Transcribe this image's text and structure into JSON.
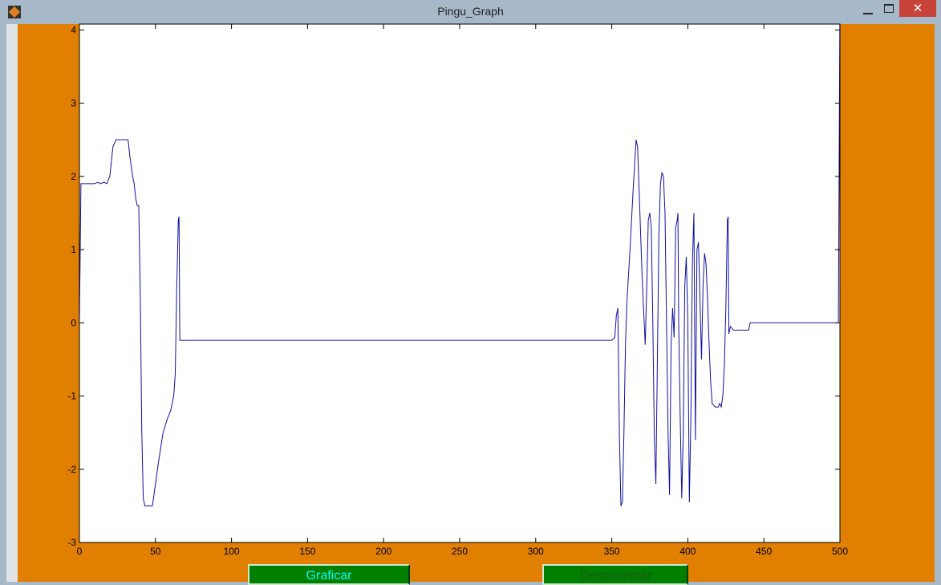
{
  "window": {
    "title": "Pingu_Graph"
  },
  "buttons": [
    "Graficar",
    "Desconectar"
  ],
  "chart_data": {
    "type": "line",
    "x": [
      0,
      1,
      10,
      12,
      14,
      16,
      18,
      20,
      22,
      24,
      30,
      32,
      33,
      35,
      36,
      37,
      38,
      39,
      40,
      41,
      42,
      43,
      48,
      50,
      52,
      55,
      58,
      60,
      62,
      63,
      64,
      65,
      65.5,
      66,
      350,
      352,
      353,
      354,
      355,
      356,
      357,
      358,
      359,
      360,
      362,
      364,
      366,
      367,
      368,
      370,
      372,
      373,
      374,
      375,
      376,
      377,
      378,
      379,
      380,
      381,
      382,
      383,
      384,
      385,
      386,
      387,
      388,
      389,
      390,
      391,
      392,
      393,
      393.5,
      394,
      395,
      396,
      397,
      398,
      399,
      400,
      401,
      402,
      403,
      404,
      405,
      406,
      407,
      408,
      409,
      410,
      411,
      412,
      413,
      414,
      415,
      416,
      418,
      420,
      421,
      422,
      423,
      424,
      425,
      426,
      426.5,
      427,
      428,
      430,
      435,
      440,
      441,
      498,
      499,
      500
    ],
    "series": [
      {
        "name": "signal",
        "color": "#1010a0",
        "values": [
          0,
          1.9,
          1.9,
          1.92,
          1.9,
          1.92,
          1.9,
          2.0,
          2.4,
          2.5,
          2.5,
          2.5,
          2.3,
          2.0,
          1.9,
          1.7,
          1.6,
          1.6,
          0.4,
          -1.5,
          -2.4,
          -2.5,
          -2.5,
          -2.2,
          -1.9,
          -1.5,
          -1.3,
          -1.2,
          -1.0,
          -0.7,
          0.5,
          1.4,
          1.45,
          -0.24,
          -0.24,
          -0.2,
          0.1,
          0.2,
          -1.5,
          -2.5,
          -2.45,
          -1.5,
          -0.3,
          0.3,
          1.0,
          1.8,
          2.5,
          2.4,
          1.8,
          0.6,
          -0.3,
          0.5,
          1.4,
          1.5,
          1.3,
          0,
          -1.6,
          -2.2,
          -0.5,
          1.2,
          1.9,
          2.05,
          2.0,
          1.5,
          0,
          -1.5,
          -2.35,
          -0.3,
          0.2,
          -0.2,
          1.3,
          1.4,
          1.5,
          0,
          -1.3,
          -2.4,
          -1.5,
          0.5,
          0.9,
          0,
          -2.45,
          -1.3,
          0.8,
          1.5,
          -1.6,
          1.0,
          1.1,
          0.3,
          -0.5,
          0.5,
          0.95,
          0.8,
          0.3,
          -0.3,
          -0.8,
          -1.1,
          -1.15,
          -1.15,
          -1.1,
          -1.15,
          -1.0,
          -0.6,
          0.2,
          1.4,
          1.45,
          -0.15,
          -0.05,
          -0.1,
          -0.1,
          -0.1,
          0,
          0,
          0,
          4.5
        ]
      }
    ],
    "xlim": [
      0,
      500
    ],
    "xticks": [
      0,
      50,
      100,
      150,
      200,
      250,
      300,
      350,
      400,
      450,
      500
    ],
    "ylim": [
      -3,
      4.08
    ],
    "yticks": [
      -3,
      -2,
      -1,
      0,
      1,
      2,
      3,
      4
    ]
  }
}
